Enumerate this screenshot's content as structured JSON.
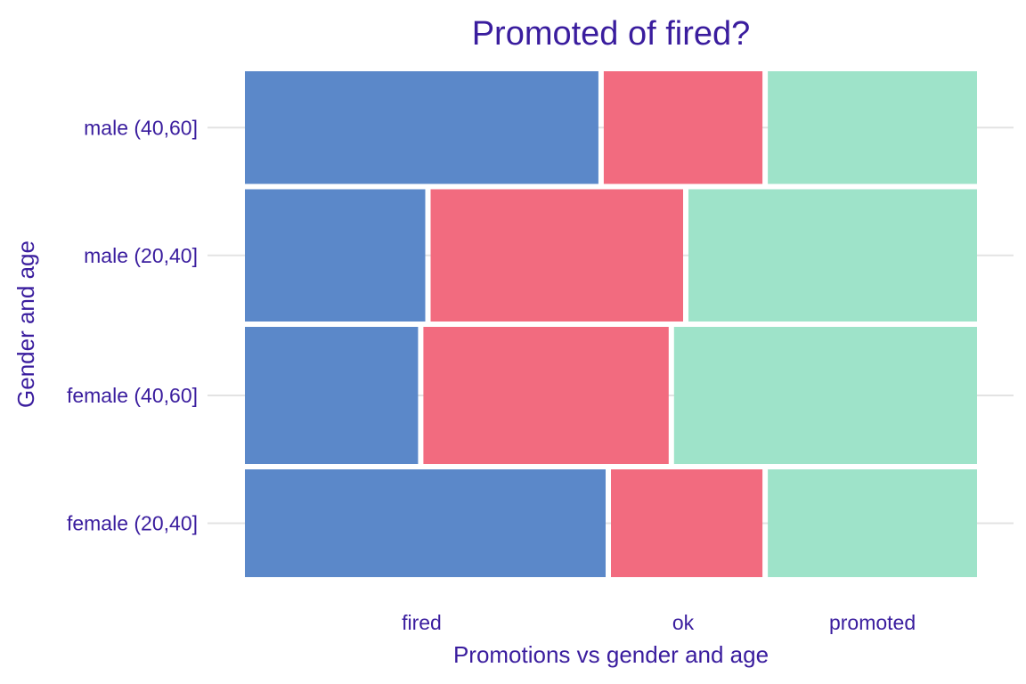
{
  "colors": {
    "text": "#3a1d9e",
    "gridline": "#e3e3e3",
    "fired": "#5b88c9",
    "ok": "#f26b7f",
    "promoted": "#9ee3c9"
  },
  "chart_data": {
    "type": "mosaic",
    "title": "Promoted of fired?",
    "xlabel": "Promotions vs gender and age",
    "ylabel": "Gender and age",
    "legend": "none",
    "grid": "horizontal",
    "x_tick_labels": [
      "fired",
      "ok",
      "promoted"
    ],
    "categories": [
      "female (20,40]",
      "female (40,60]",
      "male (20,40]",
      "male (40,60]"
    ],
    "row_share": [
      0.22,
      0.28,
      0.27,
      0.23
    ],
    "series": [
      {
        "name": "fired",
        "color_key": "fired",
        "values": [
          0.5,
          0.24,
          0.25,
          0.49
        ]
      },
      {
        "name": "ok",
        "color_key": "ok",
        "values": [
          0.21,
          0.34,
          0.35,
          0.22
        ]
      },
      {
        "name": "promoted",
        "color_key": "promoted",
        "values": [
          0.29,
          0.42,
          0.4,
          0.29
        ]
      }
    ]
  }
}
